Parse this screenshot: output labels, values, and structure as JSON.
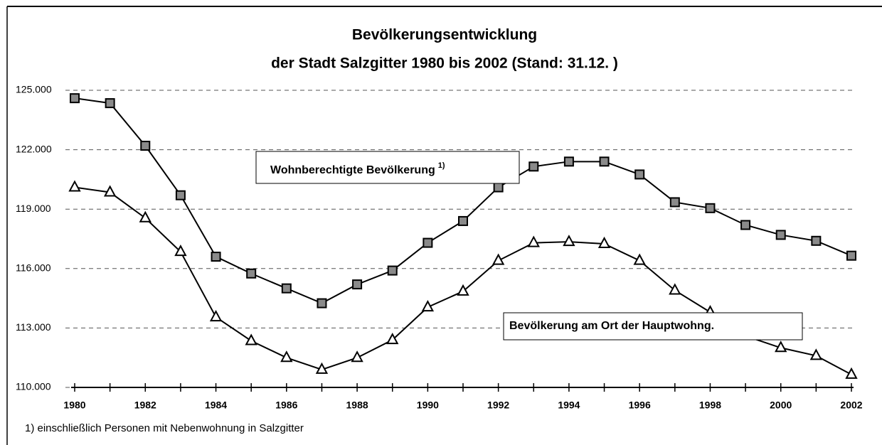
{
  "chart_data": {
    "type": "line",
    "title": "Bevölkerungsentwicklung",
    "subtitle": "der Stadt Salzgitter 1980 bis 2002  (Stand: 31.12. )",
    "x": [
      1980,
      1981,
      1982,
      1983,
      1984,
      1985,
      1986,
      1987,
      1988,
      1989,
      1990,
      1991,
      1992,
      1993,
      1994,
      1995,
      1996,
      1997,
      1998,
      1999,
      2000,
      2001,
      2002
    ],
    "series": [
      {
        "name": "Wohnberechtigte Bevölkerung",
        "name_footnote": "1)",
        "color": "#000000",
        "marker": "square",
        "values": [
          124600,
          124350,
          122200,
          119700,
          116600,
          115750,
          115000,
          114250,
          115200,
          115900,
          117300,
          118400,
          120100,
          121150,
          121400,
          121400,
          120750,
          119350,
          119050,
          118200,
          117700,
          117400,
          116650
        ]
      },
      {
        "name": "Bevölkerung am Ort der Hauptwohng.",
        "color": "#000000",
        "marker": "triangle",
        "values": [
          120100,
          119850,
          118550,
          116850,
          113550,
          112350,
          111500,
          110900,
          111500,
          112400,
          114050,
          114850,
          116400,
          117300,
          117350,
          117250,
          116400,
          114900,
          113800,
          112600,
          112000,
          111600,
          110650
        ]
      }
    ],
    "xlim": [
      1980,
      2002
    ],
    "xticks": [
      1980,
      1982,
      1984,
      1986,
      1988,
      1990,
      1992,
      1994,
      1996,
      1998,
      2000,
      2002
    ],
    "ylim": [
      110000,
      125000
    ],
    "yticks": [
      {
        "value": 110000,
        "label": "110.000"
      },
      {
        "value": 113000,
        "label": "113.000"
      },
      {
        "value": 116000,
        "label": "116.000"
      },
      {
        "value": 119000,
        "label": "119.000"
      },
      {
        "value": 122000,
        "label": "122.000"
      },
      {
        "value": 125000,
        "label": "125.000"
      }
    ],
    "grid": true,
    "footnote": "1) einschließlich Personen mit Nebenwohnung in Salzgitter"
  }
}
